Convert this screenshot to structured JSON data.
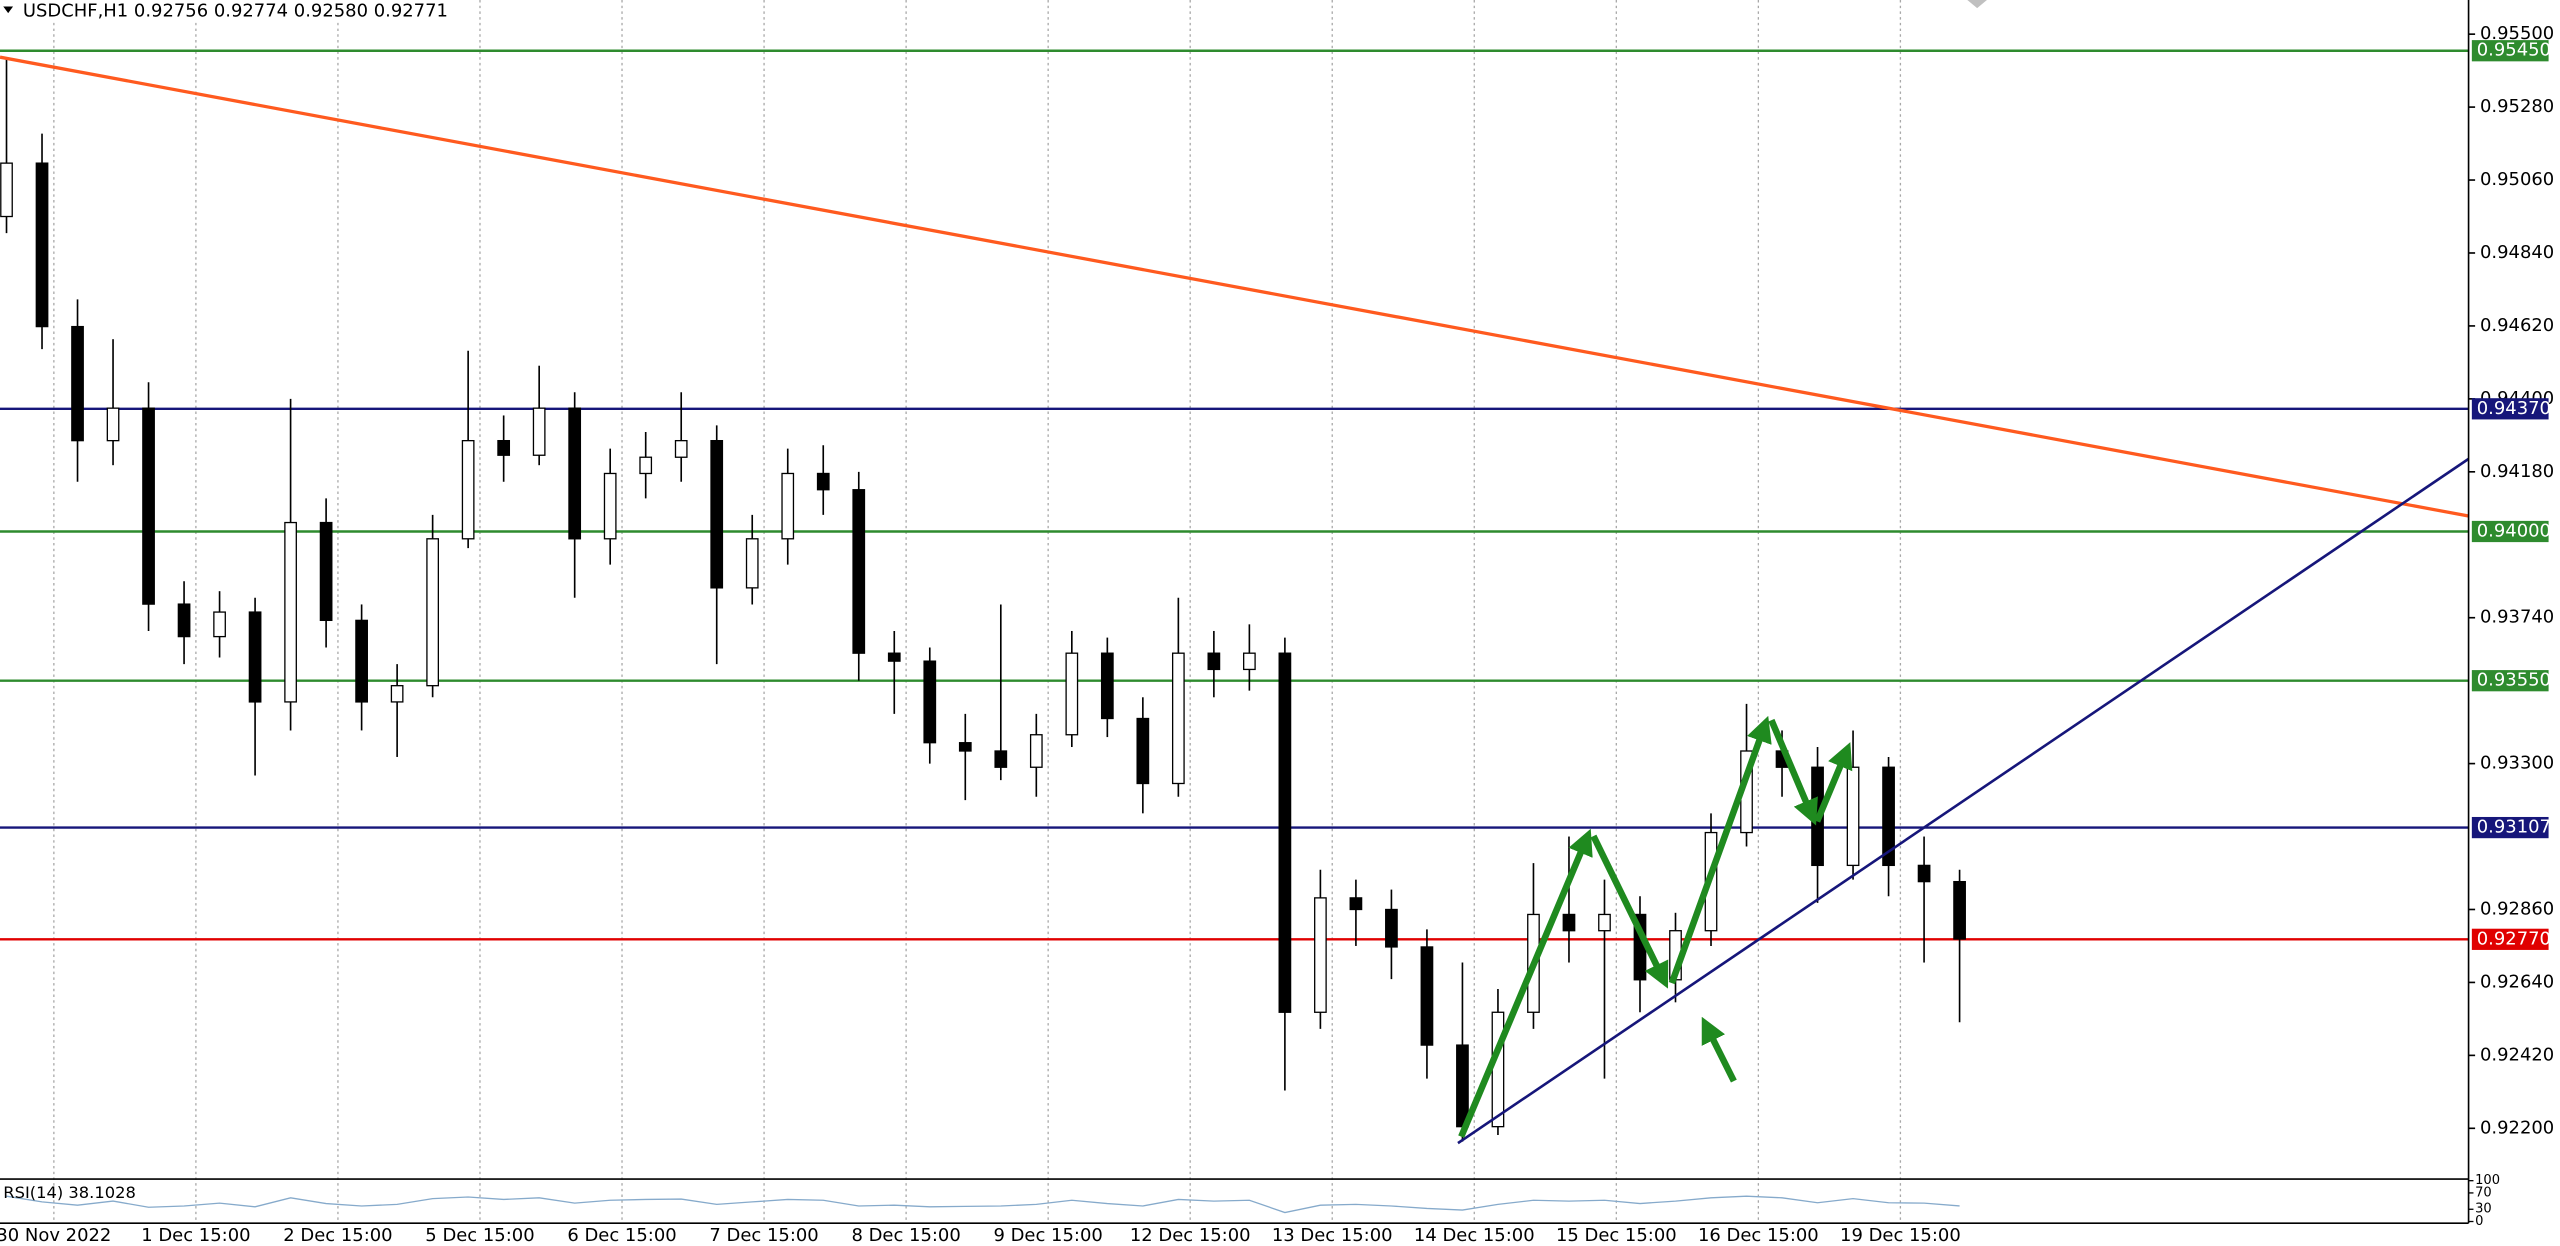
{
  "chart_data": {
    "type": "candlestick",
    "title": "USDCHF,H1  0.92756 0.92774 0.92580 0.92771",
    "xlim": [
      -9.1,
      408
    ],
    "xticks": [
      {
        "value": 0,
        "label": "30 Nov 2022"
      },
      {
        "value": 24,
        "label": "1 Dec 15:00"
      },
      {
        "value": 48,
        "label": "2 Dec 15:00"
      },
      {
        "value": 72,
        "label": "5 Dec 15:00"
      },
      {
        "value": 96,
        "label": "6 Dec 15:00"
      },
      {
        "value": 120,
        "label": "7 Dec 15:00"
      },
      {
        "value": 144,
        "label": "8 Dec 15:00"
      },
      {
        "value": 168,
        "label": "9 Dec 15:00"
      },
      {
        "value": 192,
        "label": "12 Dec 15:00"
      },
      {
        "value": 216,
        "label": "13 Dec 15:00"
      },
      {
        "value": 240,
        "label": "14 Dec 15:00"
      },
      {
        "value": 264,
        "label": "15 Dec 15:00"
      },
      {
        "value": 288,
        "label": "16 Dec 15:00"
      },
      {
        "value": 312,
        "label": "19 Dec 15:00"
      }
    ],
    "ylim": [
      0.92047,
      0.95603
    ],
    "yticks": [
      {
        "value": 0.955,
        "label": "0.95500"
      },
      {
        "value": 0.9528,
        "label": "0.95280"
      },
      {
        "value": 0.9506,
        "label": "0.95060"
      },
      {
        "value": 0.9484,
        "label": "0.94840"
      },
      {
        "value": 0.9462,
        "label": "0.94620"
      },
      {
        "value": 0.944,
        "label": "0.94400"
      },
      {
        "value": 0.9418,
        "label": "0.94180"
      },
      {
        "value": 0.9374,
        "label": "0.93740"
      },
      {
        "value": 0.933,
        "label": "0.93300"
      },
      {
        "value": 0.9286,
        "label": "0.92860"
      },
      {
        "value": 0.9264,
        "label": "0.92640"
      },
      {
        "value": 0.9242,
        "label": "0.92420"
      },
      {
        "value": 0.922,
        "label": "0.92200"
      }
    ],
    "grid": "x",
    "up_color": "#ffffff",
    "down_color": "#000000",
    "x": [
      -8,
      -2,
      4,
      10,
      16,
      22,
      28,
      34,
      40,
      46,
      52,
      58,
      64,
      70,
      76,
      82,
      88,
      94,
      100,
      106,
      112,
      118,
      124,
      130,
      136,
      142,
      148,
      154,
      160,
      166,
      172,
      178,
      184,
      190,
      196,
      202,
      208,
      214,
      220,
      226,
      232,
      238,
      244,
      250,
      256,
      262,
      268,
      274,
      280,
      286,
      292,
      298,
      304,
      310,
      316,
      322
    ],
    "open": [
      0.9495,
      0.95111,
      0.94618,
      0.94274,
      0.94372,
      0.93781,
      0.93683,
      0.93757,
      0.93486,
      0.94027,
      0.93732,
      0.93486,
      0.93535,
      0.93978,
      0.94274,
      0.9423,
      0.94372,
      0.93978,
      0.94175,
      0.94224,
      0.94274,
      0.9383,
      0.93978,
      0.94175,
      0.94126,
      0.93633,
      0.93609,
      0.93363,
      0.93338,
      0.93289,
      0.93387,
      0.93633,
      0.93436,
      0.9324,
      0.93633,
      0.93584,
      0.93633,
      0.9255,
      0.92895,
      0.9286,
      0.92747,
      0.92451,
      0.92205,
      0.9255,
      0.92845,
      0.92796,
      0.92845,
      0.92648,
      0.92796,
      0.93092,
      0.93338,
      0.93289,
      0.92993,
      0.93289,
      0.92993,
      0.92944
    ],
    "high": [
      0.9543,
      0.952,
      0.947,
      0.9458,
      0.9445,
      0.9385,
      0.9382,
      0.938,
      0.944,
      0.941,
      0.9378,
      0.936,
      0.9405,
      0.94545,
      0.9435,
      0.945,
      0.9442,
      0.9425,
      0.943,
      0.9442,
      0.9432,
      0.9405,
      0.9425,
      0.9426,
      0.9418,
      0.937,
      0.9365,
      0.9345,
      0.9378,
      0.9345,
      0.937,
      0.9368,
      0.935,
      0.938,
      0.937,
      0.9372,
      0.9368,
      0.9298,
      0.9295,
      0.9292,
      0.928,
      0.927,
      0.9262,
      0.93,
      0.9308,
      0.9295,
      0.929,
      0.9285,
      0.9315,
      0.9348,
      0.934,
      0.9335,
      0.934,
      0.9332,
      0.9308,
      0.9298
    ],
    "low": [
      0.949,
      0.9455,
      0.9415,
      0.942,
      0.937,
      0.936,
      0.9362,
      0.93264,
      0.934,
      0.9365,
      0.934,
      0.9332,
      0.935,
      0.9395,
      0.9415,
      0.942,
      0.938,
      0.939,
      0.941,
      0.9415,
      0.936,
      0.9378,
      0.939,
      0.9405,
      0.9355,
      0.9345,
      0.933,
      0.9319,
      0.9325,
      0.932,
      0.9335,
      0.9338,
      0.9315,
      0.932,
      0.935,
      0.9352,
      0.92314,
      0.925,
      0.9275,
      0.9265,
      0.9235,
      0.9216,
      0.9218,
      0.925,
      0.927,
      0.9235,
      0.9255,
      0.9258,
      0.9275,
      0.9305,
      0.932,
      0.9288,
      0.9295,
      0.929,
      0.927,
      0.9252
    ],
    "close": [
      0.95111,
      0.94618,
      0.94274,
      0.94372,
      0.93781,
      0.93683,
      0.93757,
      0.93486,
      0.94027,
      0.93732,
      0.93486,
      0.93535,
      0.93978,
      0.94274,
      0.9423,
      0.94372,
      0.93978,
      0.94175,
      0.94224,
      0.94274,
      0.9383,
      0.93978,
      0.94175,
      0.94126,
      0.93633,
      0.93609,
      0.93363,
      0.93338,
      0.93289,
      0.93387,
      0.93633,
      0.93436,
      0.9324,
      0.93633,
      0.93584,
      0.93633,
      0.9255,
      0.92895,
      0.9286,
      0.92747,
      0.92451,
      0.92205,
      0.9255,
      0.92845,
      0.92796,
      0.92845,
      0.92648,
      0.92796,
      0.93092,
      0.93338,
      0.93289,
      0.92993,
      0.93289,
      0.92993,
      0.92944,
      0.92771
    ],
    "levels": [
      {
        "value": 0.9545,
        "label": "0.95450",
        "color": "#2e8b2e"
      },
      {
        "value": 0.9437,
        "label": "0.94370",
        "color": "#16167a"
      },
      {
        "value": 0.94,
        "label": "0.94000",
        "color": "#2e8b2e"
      },
      {
        "value": 0.9355,
        "label": "0.93550",
        "color": "#2e8b2e"
      },
      {
        "value": 0.93107,
        "label": "0.93107",
        "color": "#16167a"
      },
      {
        "value": 0.9277,
        "label": "0.92770",
        "color": "#e00000"
      }
    ],
    "rsi": {
      "title": "RSI(14) 38.1028",
      "ylim": [
        0,
        100
      ],
      "yticks": [
        0,
        30,
        70,
        100
      ],
      "color": "#86aacb",
      "values": [
        62,
        48,
        40,
        50,
        35,
        38,
        45,
        36,
        58,
        44,
        38,
        42,
        56,
        60,
        54,
        58,
        45,
        52,
        54,
        55,
        42,
        48,
        54,
        52,
        38,
        40,
        36,
        37,
        38,
        42,
        52,
        44,
        38,
        54,
        50,
        52,
        22,
        40,
        42,
        38,
        32,
        28,
        42,
        52,
        50,
        52,
        44,
        50,
        58,
        62,
        58,
        46,
        56,
        46,
        45,
        38.1028
      ]
    }
  }
}
